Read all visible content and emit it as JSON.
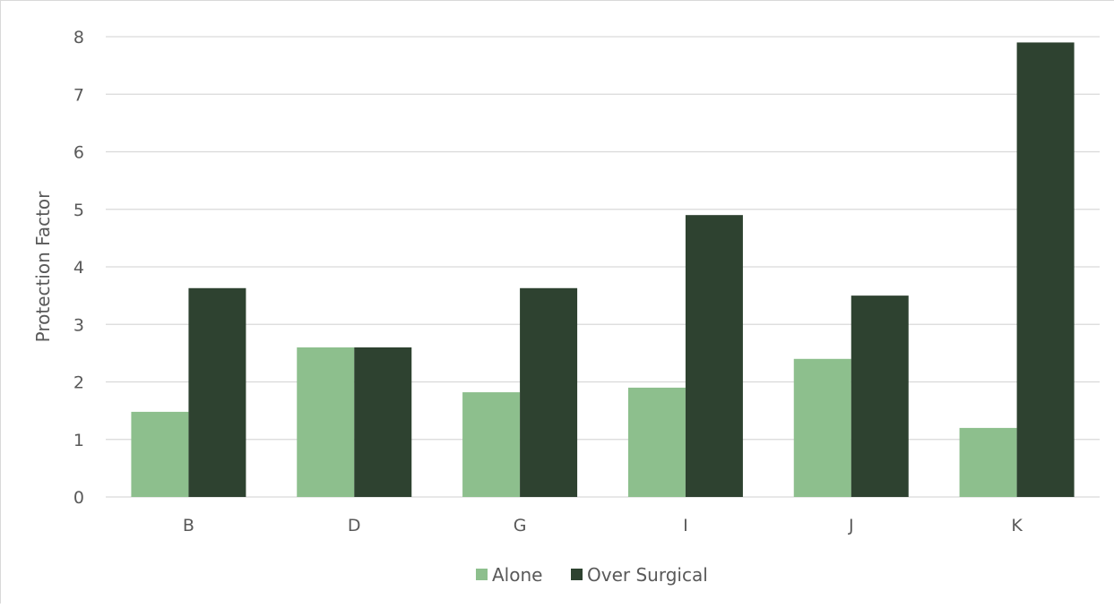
{
  "chart_data": {
    "type": "bar",
    "title": "",
    "xlabel": "",
    "ylabel": "Protection Factor",
    "categories": [
      "B",
      "D",
      "G",
      "I",
      "J",
      "K"
    ],
    "series": [
      {
        "name": "Alone",
        "values": [
          1.48,
          2.6,
          1.82,
          1.9,
          2.4,
          1.2
        ],
        "color": "#8dbf8d"
      },
      {
        "name": "Over Surgical",
        "values": [
          3.63,
          2.6,
          3.63,
          4.9,
          3.5,
          7.9
        ],
        "color": "#2e4230"
      }
    ],
    "ylim": [
      0,
      8
    ],
    "yticks": [
      "0",
      "1",
      "2",
      "3",
      "4",
      "5",
      "6",
      "7",
      "8"
    ],
    "grid": true,
    "legend_position": "bottom"
  },
  "colors": {
    "gridline": "#d9d9d9",
    "axis_line": "#d9d9d9",
    "text": "#595959"
  }
}
